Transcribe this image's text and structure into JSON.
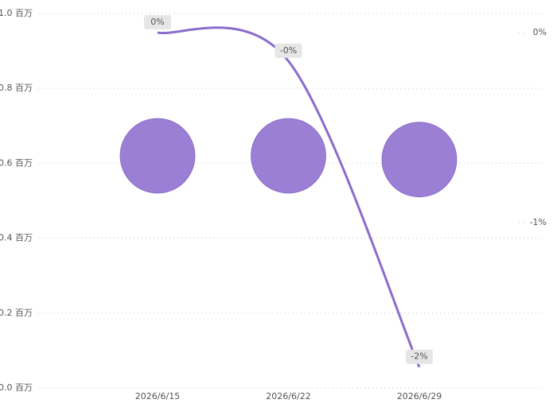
{
  "chart_data": {
    "type": "combo",
    "categories": [
      "2026/6/15",
      "2026/6/22",
      "2026/6/29"
    ],
    "ylim": [
      0,
      1.0
    ],
    "yticks": [
      {
        "value": 0,
        "label": "0.0 百万"
      },
      {
        "value": 0.2,
        "label": "0.2 百万"
      },
      {
        "value": 0.4,
        "label": "0.4 百万"
      },
      {
        "value": 0.6,
        "label": "0.6 百万"
      },
      {
        "value": 0.8,
        "label": "0.8 百万"
      },
      {
        "value": 1.0,
        "label": "1.0 百万"
      }
    ],
    "y2lim": [
      -1.87,
      0.1
    ],
    "y2ticks": [
      {
        "value": 0,
        "label": "0%"
      },
      {
        "value": -1,
        "label": "-1%"
      }
    ],
    "grid": true,
    "series": [
      {
        "type": "scatter",
        "color": "#9b7fd4",
        "values": [
          0.62,
          0.62,
          0.61
        ]
      },
      {
        "type": "line",
        "axis": "y2",
        "color": "#8a6ccb",
        "values": [
          0,
          -0.15,
          -1.76
        ],
        "value_labels": [
          "0%",
          "-0%",
          "-2%"
        ]
      }
    ]
  }
}
